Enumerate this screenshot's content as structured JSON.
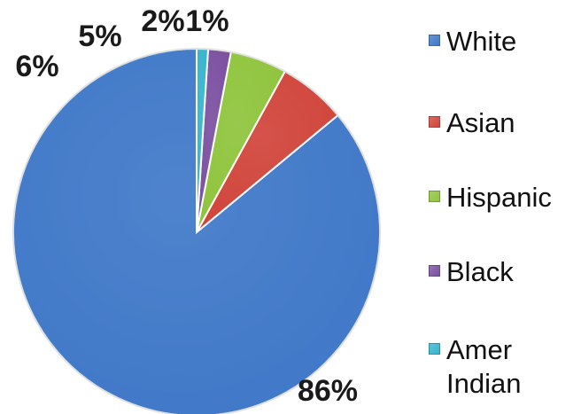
{
  "chart_data": {
    "type": "pie",
    "categories": [
      "White",
      "Asian",
      "Hispanic",
      "Black",
      "Amer Indian"
    ],
    "values": [
      86,
      6,
      5,
      2,
      1
    ],
    "data_labels": [
      "86%",
      "6%",
      "5%",
      "2%",
      "1%"
    ],
    "colors": [
      "#3f78c8",
      "#d0443a",
      "#8fc43c",
      "#7a4fa0",
      "#34b4cc"
    ],
    "legend": {
      "position": "right",
      "entries": [
        "White",
        "Asian",
        "Hispanic",
        "Black",
        "Amer Indian"
      ]
    },
    "start_angle": "12 o'clock",
    "direction": "counterclockwise"
  }
}
